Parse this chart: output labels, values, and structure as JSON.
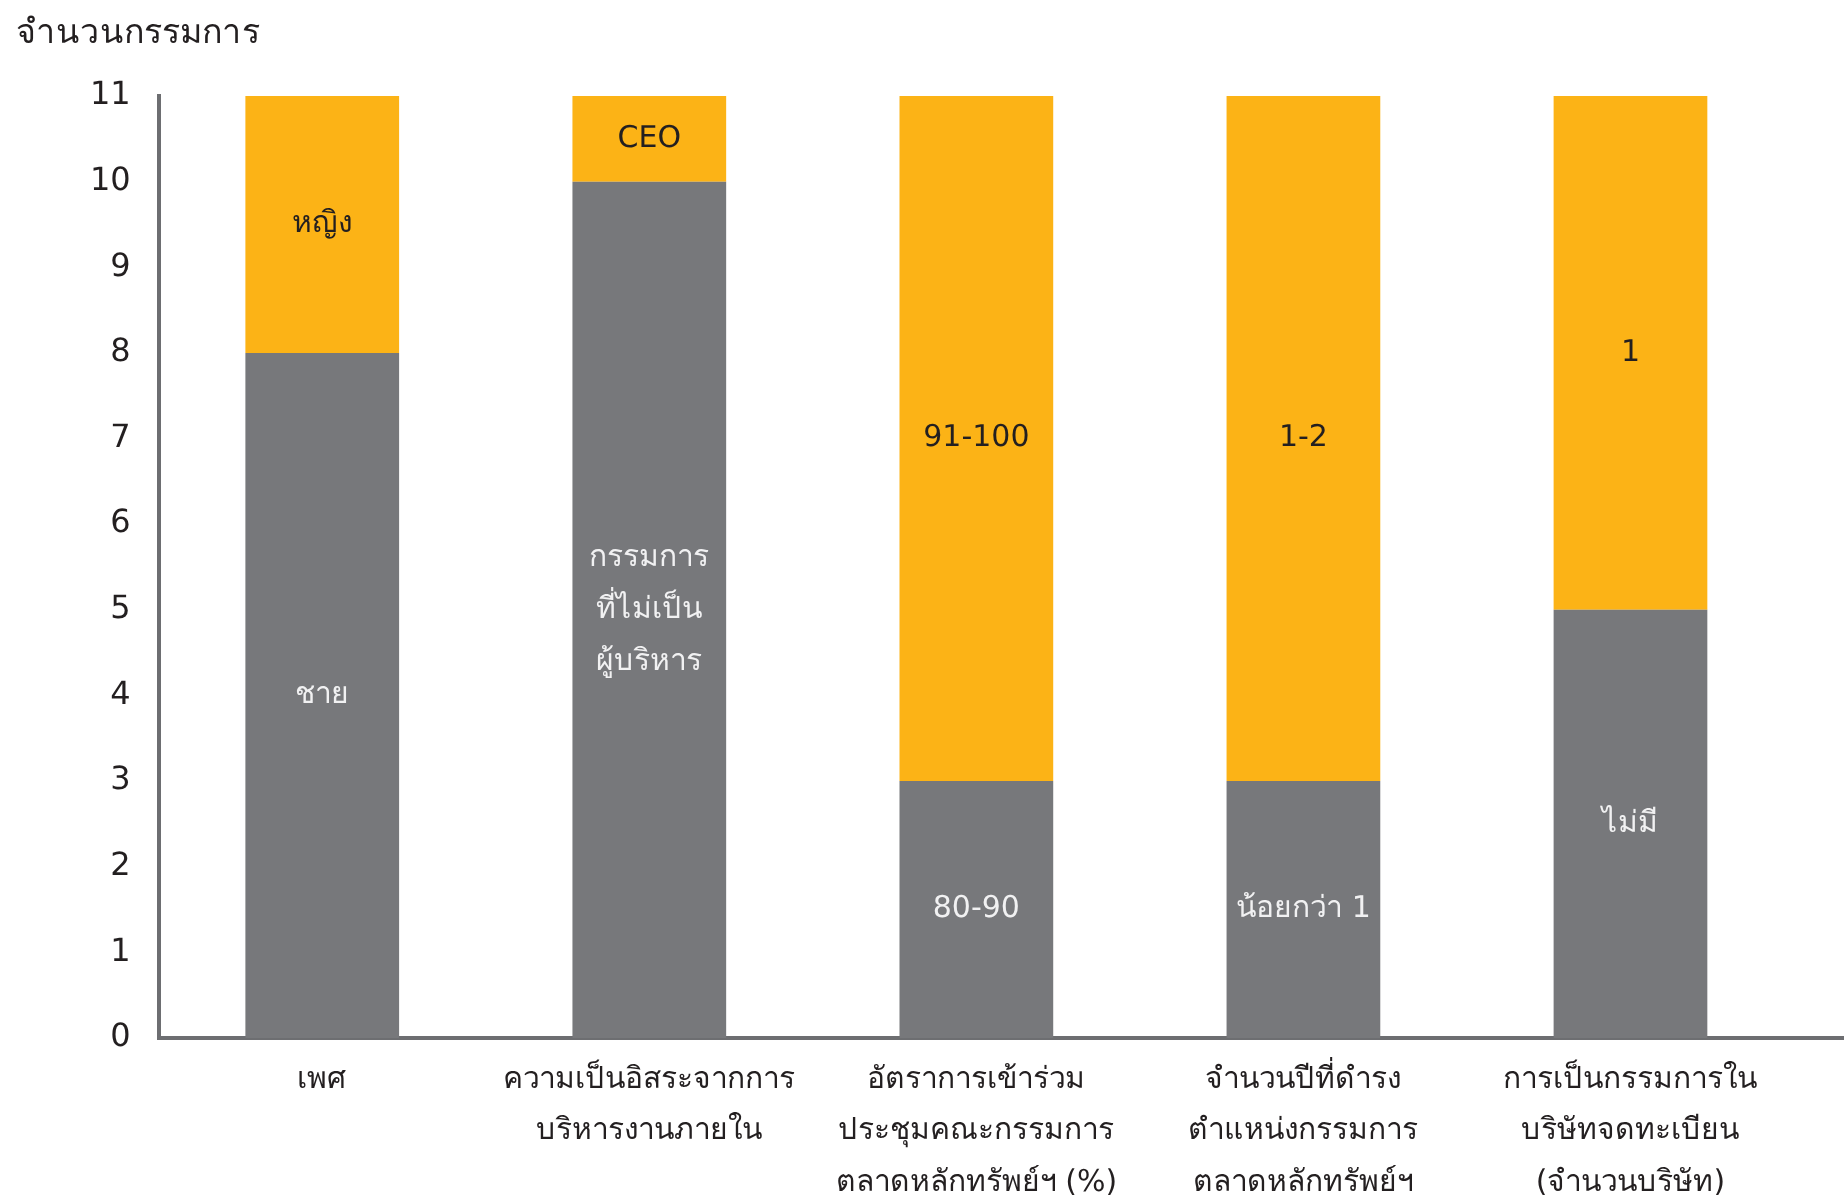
{
  "chart_data": {
    "type": "bar",
    "stacked": true,
    "ylabel": "จำนวนกรรมการ",
    "categories": [
      "เพศ",
      "ความเป็นอิสระจากการ\nบริหารงานภายใน",
      "อัตราการเข้าร่วม\nประชุมคณะกรรมการ\nตลาดหลักทรัพย์ฯ (%)",
      "จำนวนปีที่ดำรง\nตำแหน่งกรรมการ\nตลาดหลักทรัพย์ฯ",
      "การเป็นกรรมการใน\nบริษัทจดทะเบียน\n(จำนวนบริษัท)"
    ],
    "series": [
      {
        "name": "ชาย",
        "color": "#77787b",
        "values": [
          8,
          null,
          null,
          null,
          null
        ]
      },
      {
        "name": "กรรมการ\nที่ไม่เป็น\nผู้บริหาร",
        "color": "#77787b",
        "values": [
          null,
          10,
          null,
          null,
          null
        ]
      },
      {
        "name": "80-90",
        "color": "#77787b",
        "values": [
          null,
          null,
          3,
          null,
          null
        ]
      },
      {
        "name": "น้อยกว่า 1",
        "color": "#77787b",
        "values": [
          null,
          null,
          null,
          3,
          null
        ]
      },
      {
        "name": "ไม่มี",
        "color": "#77787b",
        "values": [
          null,
          null,
          null,
          null,
          5
        ]
      },
      {
        "name": "หญิง",
        "color": "#fcb316",
        "values": [
          3,
          null,
          null,
          null,
          null
        ]
      },
      {
        "name": "CEO",
        "color": "#fcb316",
        "values": [
          null,
          1,
          null,
          null,
          null
        ]
      },
      {
        "name": "91-100",
        "color": "#fcb316",
        "values": [
          null,
          null,
          8,
          null,
          null
        ]
      },
      {
        "name": "1-2",
        "color": "#fcb316",
        "values": [
          null,
          null,
          null,
          8,
          null
        ]
      },
      {
        "name": "1",
        "color": "#fcb316",
        "values": [
          null,
          null,
          null,
          null,
          6
        ]
      }
    ],
    "ylim": [
      0,
      11
    ],
    "yticks": [
      0,
      1,
      2,
      3,
      4,
      5,
      6,
      7,
      8,
      9,
      10,
      11
    ],
    "grid": false,
    "legend": false
  }
}
